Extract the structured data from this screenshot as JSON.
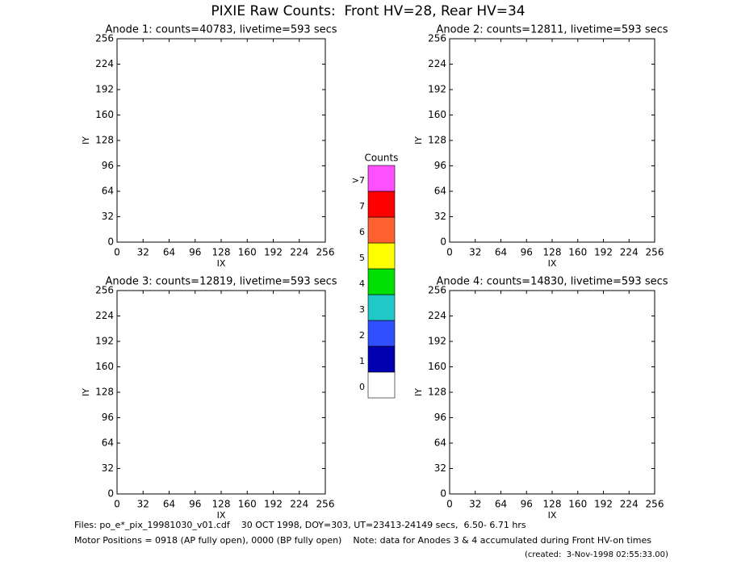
{
  "header": {
    "title": "PIXIE Raw Counts:  Front HV=28, Rear HV=34"
  },
  "chart_data": [
    {
      "type": "heatmap",
      "title": "Anode 1: counts=40783, livetime=593 secs",
      "xlabel": "IX",
      "ylabel": "IY",
      "xlim": [
        0,
        256
      ],
      "ylim": [
        0,
        256
      ],
      "xticks": [
        0,
        32,
        64,
        96,
        128,
        160,
        192,
        224,
        256
      ],
      "yticks": [
        0,
        32,
        64,
        96,
        128,
        160,
        192,
        224,
        256
      ]
    },
    {
      "type": "heatmap",
      "title": "Anode 2: counts=12811, livetime=593 secs",
      "xlabel": "IX",
      "ylabel": "IY",
      "xlim": [
        0,
        256
      ],
      "ylim": [
        0,
        256
      ],
      "xticks": [
        0,
        32,
        64,
        96,
        128,
        160,
        192,
        224,
        256
      ],
      "yticks": [
        0,
        32,
        64,
        96,
        128,
        160,
        192,
        224,
        256
      ]
    },
    {
      "type": "heatmap",
      "title": "Anode 3: counts=12819, livetime=593 secs",
      "xlabel": "IX",
      "ylabel": "IY",
      "xlim": [
        0,
        256
      ],
      "ylim": [
        0,
        256
      ],
      "xticks": [
        0,
        32,
        64,
        96,
        128,
        160,
        192,
        224,
        256
      ],
      "yticks": [
        0,
        32,
        64,
        96,
        128,
        160,
        192,
        224,
        256
      ]
    },
    {
      "type": "heatmap",
      "title": "Anode 4: counts=14830, livetime=593 secs",
      "xlabel": "IX",
      "ylabel": "IY",
      "xlim": [
        0,
        256
      ],
      "ylim": [
        0,
        256
      ],
      "xticks": [
        0,
        32,
        64,
        96,
        128,
        160,
        192,
        224,
        256
      ],
      "yticks": [
        0,
        32,
        64,
        96,
        128,
        160,
        192,
        224,
        256
      ]
    },
    {
      "type": "colorbar",
      "title": "Counts",
      "categories": [
        "0",
        "1",
        "2",
        "3",
        "4",
        "5",
        "6",
        "7",
        ">7"
      ],
      "colors": [
        "#ffffff",
        "#0000b0",
        "#3050ff",
        "#20c8c8",
        "#00e000",
        "#ffff00",
        "#ff6030",
        "#ff0000",
        "#ff50ff"
      ]
    }
  ],
  "footer": {
    "files": "Files: po_e*_pix_19981030_v01.cdf    30 OCT 1998, DOY=303, UT=23413-24149 secs,  6.50- 6.71 hrs",
    "motor": "Motor Positions = 0918 (AP fully open), 0000 (BP fully open)    Note: data for Anodes 3 & 4 accumulated during Front HV-on times",
    "created": "(created:  3-Nov-1998 02:55:33.00)"
  }
}
